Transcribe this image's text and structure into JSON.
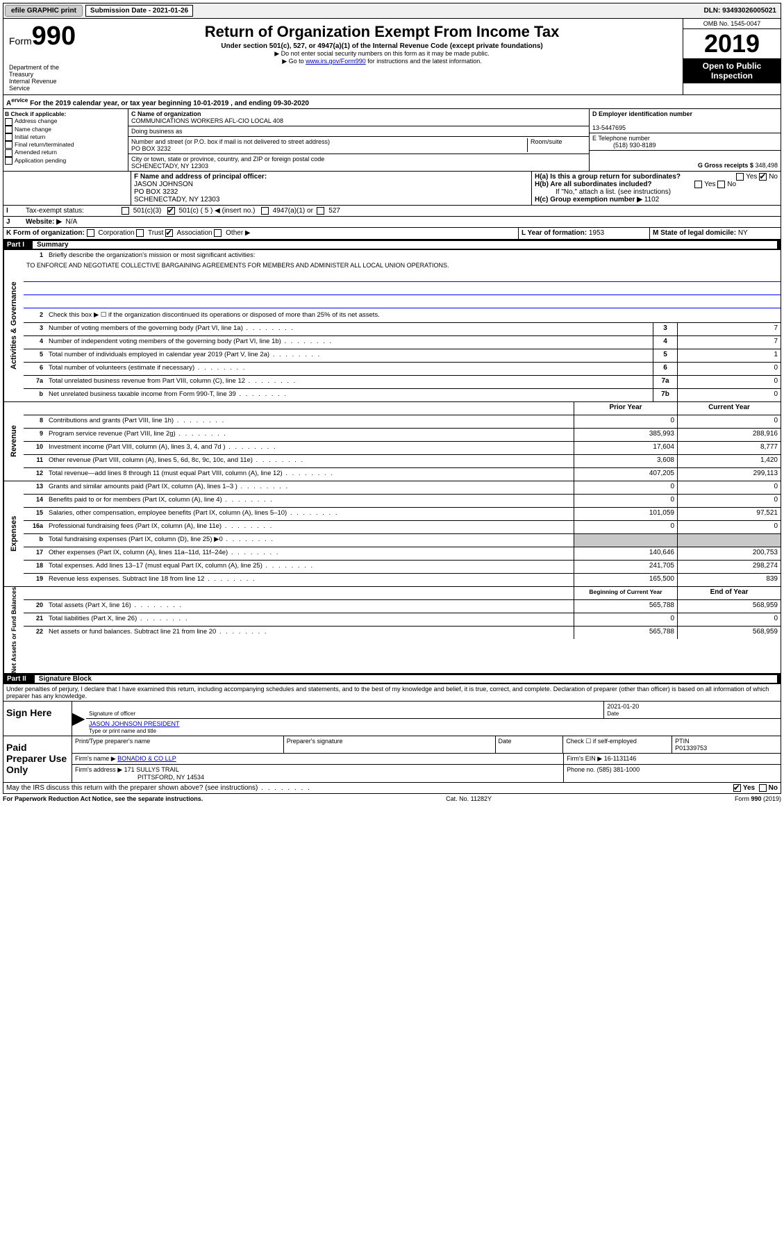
{
  "topbar": {
    "efile": "efile GRAPHIC print",
    "submission_label": "Submission Date - 2021-01-26",
    "dln": "DLN: 93493026005021"
  },
  "header": {
    "form_prefix": "Form",
    "form_number": "990",
    "title": "Return of Organization Exempt From Income Tax",
    "subtitle": "Under section 501(c), 527, or 4947(a)(1) of the Internal Revenue Code (except private foundations)",
    "note1": "▶ Do not enter social security numbers on this form as it may be made public.",
    "note2_pre": "▶ Go to ",
    "note2_link": "www.irs.gov/Form990",
    "note2_post": " for instructions and the latest information.",
    "omb": "OMB No. 1545-0047",
    "year": "2019",
    "open_public": "Open to Public Inspection",
    "dept": "Department of the Treasury\nInternal Revenue Service"
  },
  "period": {
    "line_a": "For the 2019 calendar year, or tax year beginning 10-01-2019     , and ending 09-30-2020"
  },
  "section_b": {
    "label": "B Check if applicable:",
    "opts": [
      "Address change",
      "Name change",
      "Initial return",
      "Final return/terminated",
      "Amended return",
      "Application pending"
    ]
  },
  "section_c": {
    "name_label": "C Name of organization",
    "name": "COMMUNICATIONS WORKERS AFL-CIO LOCAL 408",
    "dba_label": "Doing business as",
    "addr_label": "Number and street (or P.O. box if mail is not delivered to street address)",
    "room_label": "Room/suite",
    "addr": "PO BOX 3232",
    "city_label": "City or town, state or province, country, and ZIP or foreign postal code",
    "city": "SCHENECTADY, NY  12303"
  },
  "section_d": {
    "label": "D Employer identification number",
    "value": "13-5447695"
  },
  "section_e": {
    "label": "E Telephone number",
    "value": "(518) 930-8189"
  },
  "section_g": {
    "label": "G Gross receipts $",
    "value": "348,498"
  },
  "section_f": {
    "label": "F Name and address of principal officer:",
    "name": "JASON JOHNSON",
    "addr": "PO BOX 3232",
    "city": "SCHENECTADY, NY  12303"
  },
  "section_h": {
    "ha": "H(a)  Is this a group return for subordinates?",
    "hb": "H(b)  Are all subordinates included?",
    "hb_note": "If \"No,\" attach a list. (see instructions)",
    "hc": "H(c)  Group exemption number ▶",
    "hc_val": "1102",
    "yes": "Yes",
    "no": "No"
  },
  "section_i": {
    "label": "Tax-exempt status:",
    "opts": [
      "501(c)(3)",
      "501(c) ( 5 ) ◀ (insert no.)",
      "4947(a)(1) or",
      "527"
    ]
  },
  "section_j": {
    "label": "Website: ▶",
    "value": "N/A"
  },
  "section_k": {
    "label": "K Form of organization:",
    "opts": [
      "Corporation",
      "Trust",
      "Association",
      "Other ▶"
    ]
  },
  "section_l": {
    "label": "L Year of formation:",
    "value": "1953"
  },
  "section_m": {
    "label": "M State of legal domicile:",
    "value": "NY"
  },
  "part1": {
    "header_label": "Part I",
    "header_title": "Summary",
    "line1_text": "Briefly describe the organization's mission or most significant activities:",
    "mission": "TO ENFORCE AND NEGOTIATE COLLECTIVE BARGAINING AGREEMENTS FOR MEMBERS AND ADMINISTER ALL LOCAL UNION OPERATIONS.",
    "line2": "Check this box ▶ ☐  if the organization discontinued its operations or disposed of more than 25% of its net assets.",
    "governance": [
      {
        "n": "3",
        "t": "Number of voting members of the governing body (Part VI, line 1a)",
        "b": "3",
        "v": "7"
      },
      {
        "n": "4",
        "t": "Number of independent voting members of the governing body (Part VI, line 1b)",
        "b": "4",
        "v": "7"
      },
      {
        "n": "5",
        "t": "Total number of individuals employed in calendar year 2019 (Part V, line 2a)",
        "b": "5",
        "v": "1"
      },
      {
        "n": "6",
        "t": "Total number of volunteers (estimate if necessary)",
        "b": "6",
        "v": "0"
      },
      {
        "n": "7a",
        "t": "Total unrelated business revenue from Part VIII, column (C), line 12",
        "b": "7a",
        "v": "0"
      },
      {
        "n": "b",
        "t": "Net unrelated business taxable income from Form 990-T, line 39",
        "b": "7b",
        "v": "0"
      }
    ],
    "prior_year_label": "Prior Year",
    "current_year_label": "Current Year",
    "revenue": [
      {
        "n": "8",
        "t": "Contributions and grants (Part VIII, line 1h)",
        "p": "0",
        "c": "0"
      },
      {
        "n": "9",
        "t": "Program service revenue (Part VIII, line 2g)",
        "p": "385,993",
        "c": "288,916"
      },
      {
        "n": "10",
        "t": "Investment income (Part VIII, column (A), lines 3, 4, and 7d )",
        "p": "17,604",
        "c": "8,777"
      },
      {
        "n": "11",
        "t": "Other revenue (Part VIII, column (A), lines 5, 6d, 8c, 9c, 10c, and 11e)",
        "p": "3,608",
        "c": "1,420"
      },
      {
        "n": "12",
        "t": "Total revenue—add lines 8 through 11 (must equal Part VIII, column (A), line 12)",
        "p": "407,205",
        "c": "299,113"
      }
    ],
    "expenses": [
      {
        "n": "13",
        "t": "Grants and similar amounts paid (Part IX, column (A), lines 1–3 )",
        "p": "0",
        "c": "0"
      },
      {
        "n": "14",
        "t": "Benefits paid to or for members (Part IX, column (A), line 4)",
        "p": "0",
        "c": "0"
      },
      {
        "n": "15",
        "t": "Salaries, other compensation, employee benefits (Part IX, column (A), lines 5–10)",
        "p": "101,059",
        "c": "97,521"
      },
      {
        "n": "16a",
        "t": "Professional fundraising fees (Part IX, column (A), line 11e)",
        "p": "0",
        "c": "0"
      },
      {
        "n": "b",
        "t": "Total fundraising expenses (Part IX, column (D), line 25) ▶0",
        "p": "",
        "c": ""
      },
      {
        "n": "17",
        "t": "Other expenses (Part IX, column (A), lines 11a–11d, 11f–24e)",
        "p": "140,646",
        "c": "200,753"
      },
      {
        "n": "18",
        "t": "Total expenses. Add lines 13–17 (must equal Part IX, column (A), line 25)",
        "p": "241,705",
        "c": "298,274"
      },
      {
        "n": "19",
        "t": "Revenue less expenses. Subtract line 18 from line 12",
        "p": "165,500",
        "c": "839"
      }
    ],
    "begin_label": "Beginning of Current Year",
    "end_label": "End of Year",
    "net": [
      {
        "n": "20",
        "t": "Total assets (Part X, line 16)",
        "p": "565,788",
        "c": "568,959"
      },
      {
        "n": "21",
        "t": "Total liabilities (Part X, line 26)",
        "p": "0",
        "c": "0"
      },
      {
        "n": "22",
        "t": "Net assets or fund balances. Subtract line 21 from line 20",
        "p": "565,788",
        "c": "568,959"
      }
    ],
    "side_gov": "Activities & Governance",
    "side_rev": "Revenue",
    "side_exp": "Expenses",
    "side_net": "Net Assets or Fund Balances"
  },
  "part2": {
    "header_label": "Part II",
    "header_title": "Signature Block",
    "declaration": "Under penalties of perjury, I declare that I have examined this return, including accompanying schedules and statements, and to the best of my knowledge and belief, it is true, correct, and complete. Declaration of preparer (other than officer) is based on all information of which preparer has any knowledge.",
    "sign_here": "Sign Here",
    "sig_officer": "Signature of officer",
    "sig_date": "2021-01-20",
    "date_label": "Date",
    "officer_name": "JASON JOHNSON  PRESIDENT",
    "type_name_label": "Type or print name and title",
    "paid_prep": "Paid Preparer Use Only",
    "print_name_label": "Print/Type preparer's name",
    "prep_sig_label": "Preparer's signature",
    "check_self": "Check ☐ if self-employed",
    "ptin_label": "PTIN",
    "ptin": "P01339753",
    "firm_name_label": "Firm's name     ▶",
    "firm_name": "BONADIO & CO LLP",
    "firm_ein_label": "Firm's EIN ▶",
    "firm_ein": "16-1131146",
    "firm_addr_label": "Firm's address ▶",
    "firm_addr1": "171 SULLYS TRAIL",
    "firm_addr2": "PITTSFORD, NY  14534",
    "phone_label": "Phone no.",
    "phone": "(585) 381-1000",
    "discuss": "May the IRS discuss this return with the preparer shown above? (see instructions)",
    "yes": "Yes",
    "no": "No"
  },
  "footer": {
    "pra": "For Paperwork Reduction Act Notice, see the separate instructions.",
    "cat": "Cat. No. 11282Y",
    "form": "Form 990 (2019)"
  }
}
